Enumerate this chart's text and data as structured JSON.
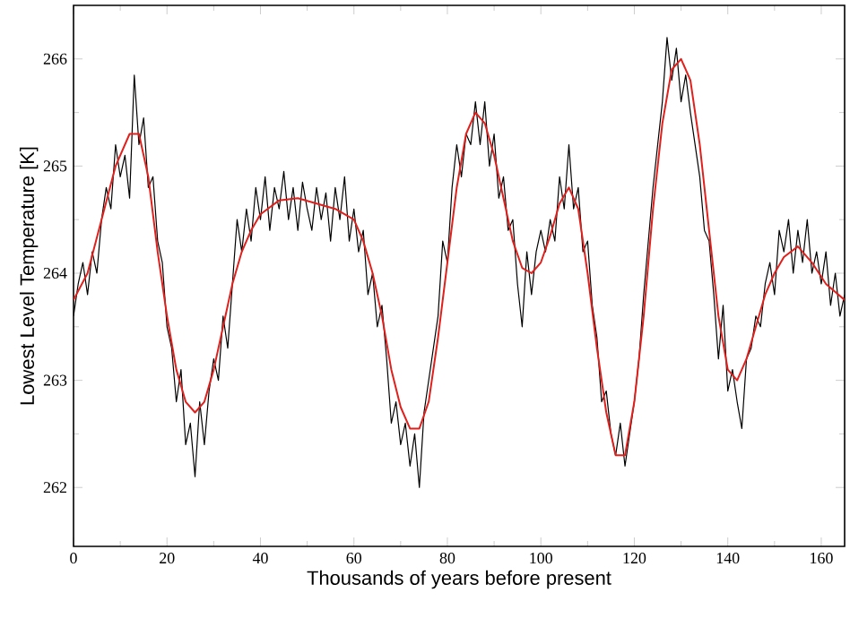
{
  "chart_data": {
    "type": "line",
    "xlabel": "Thousands of years before present",
    "ylabel": "Lowest Level Temperature [K]",
    "xlim": [
      0,
      165
    ],
    "ylim": [
      261.45,
      266.5
    ],
    "xticks": [
      0,
      20,
      40,
      60,
      80,
      100,
      120,
      140,
      160
    ],
    "yticks": [
      262,
      263,
      264,
      265,
      266
    ],
    "grid": false,
    "marker": "none",
    "line_style": "solid",
    "series": [
      {
        "color": "#000000",
        "x": [
          0,
          1,
          2,
          3,
          4,
          5,
          6,
          7,
          8,
          9,
          10,
          11,
          12,
          13,
          14,
          15,
          16,
          17,
          18,
          19,
          20,
          21,
          22,
          23,
          24,
          25,
          26,
          27,
          28,
          29,
          30,
          31,
          32,
          33,
          34,
          35,
          36,
          37,
          38,
          39,
          40,
          41,
          42,
          43,
          44,
          45,
          46,
          47,
          48,
          49,
          50,
          51,
          52,
          53,
          54,
          55,
          56,
          57,
          58,
          59,
          60,
          61,
          62,
          63,
          64,
          65,
          66,
          67,
          68,
          69,
          70,
          71,
          72,
          73,
          74,
          75,
          76,
          77,
          78,
          79,
          80,
          81,
          82,
          83,
          84,
          85,
          86,
          87,
          88,
          89,
          90,
          91,
          92,
          93,
          94,
          95,
          96,
          97,
          98,
          99,
          100,
          101,
          102,
          103,
          104,
          105,
          106,
          107,
          108,
          109,
          110,
          111,
          112,
          113,
          114,
          115,
          116,
          117,
          118,
          119,
          120,
          121,
          122,
          123,
          124,
          125,
          126,
          127,
          128,
          129,
          130,
          131,
          132,
          133,
          134,
          135,
          136,
          137,
          138,
          139,
          140,
          141,
          142,
          143,
          144,
          145,
          146,
          147,
          148,
          149,
          150,
          151,
          152,
          153,
          154,
          155,
          156,
          157,
          158,
          159,
          160,
          161,
          162,
          163,
          164,
          165
        ],
        "values": [
          263.6,
          263.9,
          264.1,
          263.8,
          264.2,
          264.0,
          264.5,
          264.8,
          264.6,
          265.2,
          264.9,
          265.1,
          264.7,
          265.85,
          265.2,
          265.45,
          264.8,
          264.9,
          264.3,
          264.1,
          263.5,
          263.3,
          262.8,
          263.1,
          262.4,
          262.6,
          262.1,
          262.8,
          262.4,
          262.9,
          263.2,
          263.0,
          263.6,
          263.3,
          263.9,
          264.5,
          264.2,
          264.6,
          264.3,
          264.8,
          264.5,
          264.9,
          264.4,
          264.8,
          264.6,
          264.95,
          264.5,
          264.8,
          264.4,
          264.85,
          264.6,
          264.4,
          264.8,
          264.5,
          264.75,
          264.3,
          264.8,
          264.5,
          264.9,
          264.3,
          264.6,
          264.2,
          264.4,
          263.8,
          264.0,
          263.5,
          263.7,
          263.2,
          262.6,
          262.8,
          262.4,
          262.6,
          262.2,
          262.5,
          262.0,
          262.7,
          263.0,
          263.3,
          263.6,
          264.3,
          264.1,
          264.8,
          265.2,
          264.9,
          265.3,
          265.2,
          265.6,
          265.2,
          265.6,
          265.0,
          265.3,
          264.7,
          264.9,
          264.4,
          264.5,
          263.9,
          263.5,
          264.2,
          263.8,
          264.2,
          264.4,
          264.2,
          264.5,
          264.3,
          264.9,
          264.6,
          265.2,
          264.6,
          264.8,
          264.2,
          264.3,
          263.7,
          263.4,
          262.8,
          262.9,
          262.5,
          262.3,
          262.6,
          262.2,
          262.5,
          262.8,
          263.2,
          263.8,
          264.3,
          264.8,
          265.2,
          265.6,
          266.2,
          265.8,
          266.1,
          265.6,
          265.85,
          265.5,
          265.2,
          264.9,
          264.4,
          264.3,
          263.8,
          263.2,
          263.7,
          262.9,
          263.1,
          262.8,
          262.55,
          263.2,
          263.3,
          263.6,
          263.5,
          263.9,
          264.1,
          263.8,
          264.4,
          264.2,
          264.5,
          264.0,
          264.4,
          264.1,
          264.5,
          264.0,
          264.2,
          263.9,
          264.2,
          263.7,
          264.0,
          263.6,
          263.8
        ]
      },
      {
        "color": "#e0201c",
        "x": [
          0,
          3,
          6,
          9,
          12,
          14,
          16,
          18,
          20,
          22,
          24,
          26,
          28,
          30,
          32,
          34,
          36,
          38,
          40,
          44,
          48,
          52,
          56,
          60,
          62,
          64,
          66,
          68,
          70,
          72,
          74,
          76,
          78,
          80,
          82,
          84,
          86,
          88,
          90,
          92,
          94,
          96,
          98,
          100,
          102,
          104,
          106,
          108,
          110,
          112,
          114,
          116,
          118,
          120,
          122,
          124,
          126,
          128,
          130,
          132,
          134,
          136,
          138,
          140,
          142,
          144,
          146,
          148,
          150,
          152,
          155,
          158,
          161,
          165
        ],
        "values": [
          263.75,
          264.0,
          264.5,
          265.0,
          265.3,
          265.3,
          264.9,
          264.2,
          263.6,
          263.1,
          262.8,
          262.7,
          262.8,
          263.1,
          263.5,
          263.9,
          264.2,
          264.4,
          264.55,
          264.68,
          264.7,
          264.65,
          264.6,
          264.5,
          264.3,
          264.0,
          263.6,
          263.1,
          262.75,
          262.55,
          262.55,
          262.8,
          263.4,
          264.1,
          264.8,
          265.3,
          265.5,
          265.4,
          265.1,
          264.7,
          264.3,
          264.05,
          264.0,
          264.1,
          264.35,
          264.65,
          264.8,
          264.6,
          264.0,
          263.3,
          262.7,
          262.3,
          262.3,
          262.8,
          263.6,
          264.6,
          265.4,
          265.9,
          266.0,
          265.8,
          265.2,
          264.4,
          263.6,
          263.1,
          263.0,
          263.2,
          263.5,
          263.8,
          264.0,
          264.15,
          264.25,
          264.1,
          263.9,
          263.75
        ]
      }
    ]
  }
}
